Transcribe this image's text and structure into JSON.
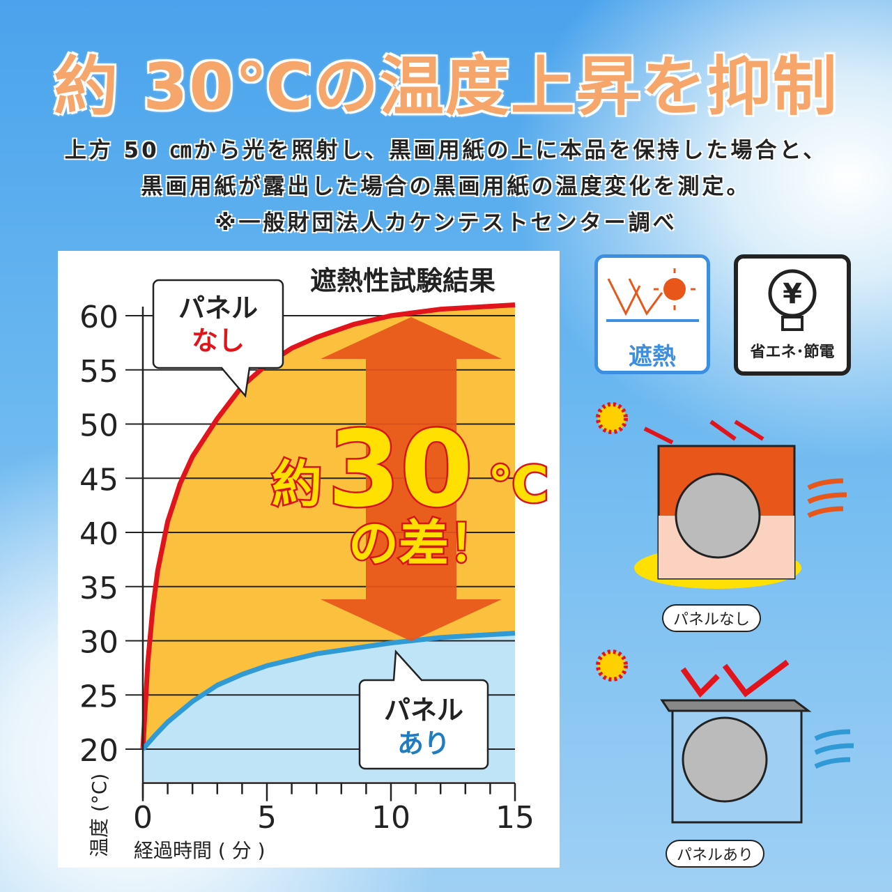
{
  "header": {
    "title": "約 30℃の温度上昇を抑制",
    "lines": [
      "上方 50 ㎝から光を照射し、黒画用紙の上に本品を保持した場合と、",
      "黒画用紙が露出した場合の黒画用紙の温度変化を測定。",
      "※一般財団法人カケンテストセンター調べ"
    ]
  },
  "chart_data": {
    "type": "area",
    "title": "遮熱性試験結果",
    "xlabel": "経過時間 ( 分 )",
    "ylabel": "温度 (°C)",
    "xlim": [
      0,
      15
    ],
    "ylim": [
      17,
      61
    ],
    "xticks": [
      0,
      5,
      10,
      15
    ],
    "yticks": [
      20,
      25,
      30,
      35,
      40,
      45,
      50,
      55,
      60
    ],
    "grid": "horizontal",
    "series": [
      {
        "name": "パネルなし",
        "color": "#e2141b",
        "fill": "#fbc13e",
        "points": [
          [
            0,
            20
          ],
          [
            0.2,
            28
          ],
          [
            0.4,
            33
          ],
          [
            0.6,
            36.5
          ],
          [
            1,
            41
          ],
          [
            1.5,
            44.5
          ],
          [
            2,
            47
          ],
          [
            3,
            50.5
          ],
          [
            4,
            53.5
          ],
          [
            5,
            55.5
          ],
          [
            6,
            57
          ],
          [
            7,
            58
          ],
          [
            8.5,
            59.2
          ],
          [
            10,
            60
          ],
          [
            12,
            60.6
          ],
          [
            15,
            61
          ]
        ]
      },
      {
        "name": "パネルあり",
        "color": "#2f9ad6",
        "fill": "#bfe3f7",
        "points": [
          [
            0,
            20
          ],
          [
            0.5,
            21.3
          ],
          [
            1,
            22.5
          ],
          [
            2,
            24.4
          ],
          [
            3,
            25.9
          ],
          [
            4,
            26.9
          ],
          [
            5,
            27.7
          ],
          [
            7,
            28.8
          ],
          [
            10,
            29.8
          ],
          [
            12,
            30.3
          ],
          [
            15,
            30.7
          ]
        ]
      }
    ],
    "annotations": {
      "callout_none": {
        "line1": "パネル",
        "line2": "なし"
      },
      "callout_with": {
        "line1": "パネル",
        "line2": "あり"
      },
      "diff_prefix": "約",
      "diff_value": "30",
      "diff_unit": "℃",
      "diff_suffix": "の差！"
    }
  },
  "badges": {
    "heat": "遮熱",
    "energy": "省エネ･節電",
    "energy_icon": "yen-bulb-icon",
    "heat_icon": "sun-reflect-icon"
  },
  "illustrations": {
    "without": "パネルなし",
    "with": "パネルあり"
  }
}
